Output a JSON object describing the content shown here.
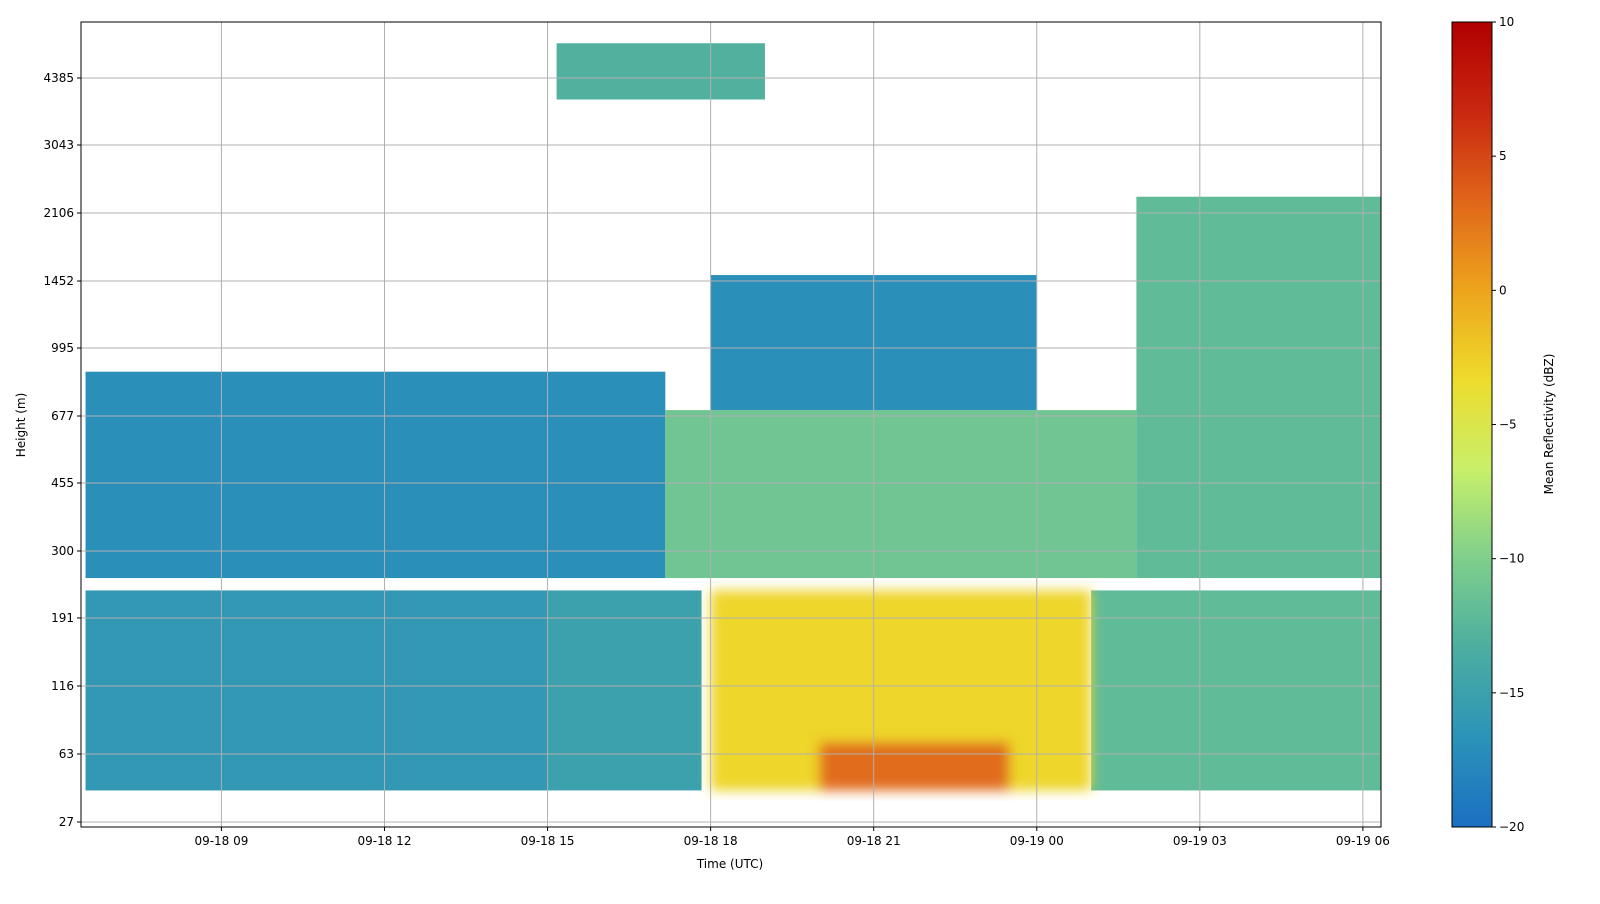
{
  "chart_data": {
    "type": "heatmap",
    "title": "",
    "xlabel": "Time (UTC)",
    "ylabel": "Height (m)",
    "colorbar_label": "Mean Reflectivity (dBZ)",
    "xlim": [
      "09-18 06:25",
      "09-19 06:20"
    ],
    "x_ticks": [
      "09-18 09",
      "09-18 12",
      "09-18 15",
      "09-18 18",
      "09-18 21",
      "09-19 00",
      "09-19 03",
      "09-19 06"
    ],
    "y_ticks": [
      "27",
      "63",
      "116",
      "191",
      "300",
      "455",
      "677",
      "995",
      "1452",
      "2106",
      "3043",
      "4385"
    ],
    "clim": [
      -20,
      10
    ],
    "colorbar_ticks": [
      "10",
      "5",
      "0",
      "−5",
      "−10",
      "−15",
      "−20"
    ],
    "colormap": [
      "#1c6fc2",
      "#2b93b8",
      "#4caea0",
      "#7fcf8c",
      "#c8ef6a",
      "#eedc2c",
      "#eda41c",
      "#e0661a",
      "#c92710",
      "#b00000"
    ],
    "grid": true,
    "value_regions": [
      {
        "x": [
          "09-18 06:30",
          "09-18 17:10"
        ],
        "height_m": [
          250,
          870
        ],
        "dbz": -17
      },
      {
        "x": [
          "09-18 17:10",
          "09-19 01:50"
        ],
        "height_m": [
          250,
          700
        ],
        "dbz": -11
      },
      {
        "x": [
          "09-18 18:00",
          "09-19 00:00"
        ],
        "height_m": [
          700,
          1500
        ],
        "dbz": -17
      },
      {
        "x": [
          "09-19 01:50",
          "09-19 06:20"
        ],
        "height_m": [
          250,
          2300
        ],
        "dbz": -12
      },
      {
        "x": [
          "09-18 06:30",
          "09-18 15:00"
        ],
        "height_m": [
          40,
          230
        ],
        "dbz": -16
      },
      {
        "x": [
          "09-18 15:00",
          "09-18 17:50"
        ],
        "height_m": [
          40,
          230
        ],
        "dbz": -15
      },
      {
        "x": [
          "09-18 18:00",
          "09-19 01:00"
        ],
        "height_m": [
          40,
          230
        ],
        "dbz": -3
      },
      {
        "x": [
          "09-18 20:00",
          "09-18 23:30"
        ],
        "height_m": [
          40,
          70
        ],
        "dbz": 3
      },
      {
        "x": [
          "09-19 01:00",
          "09-19 06:20"
        ],
        "height_m": [
          40,
          230
        ],
        "dbz": -12
      },
      {
        "x": [
          "09-18 15:10",
          "09-18 19:00"
        ],
        "height_m": [
          3900,
          5300
        ],
        "dbz": -13
      }
    ]
  }
}
